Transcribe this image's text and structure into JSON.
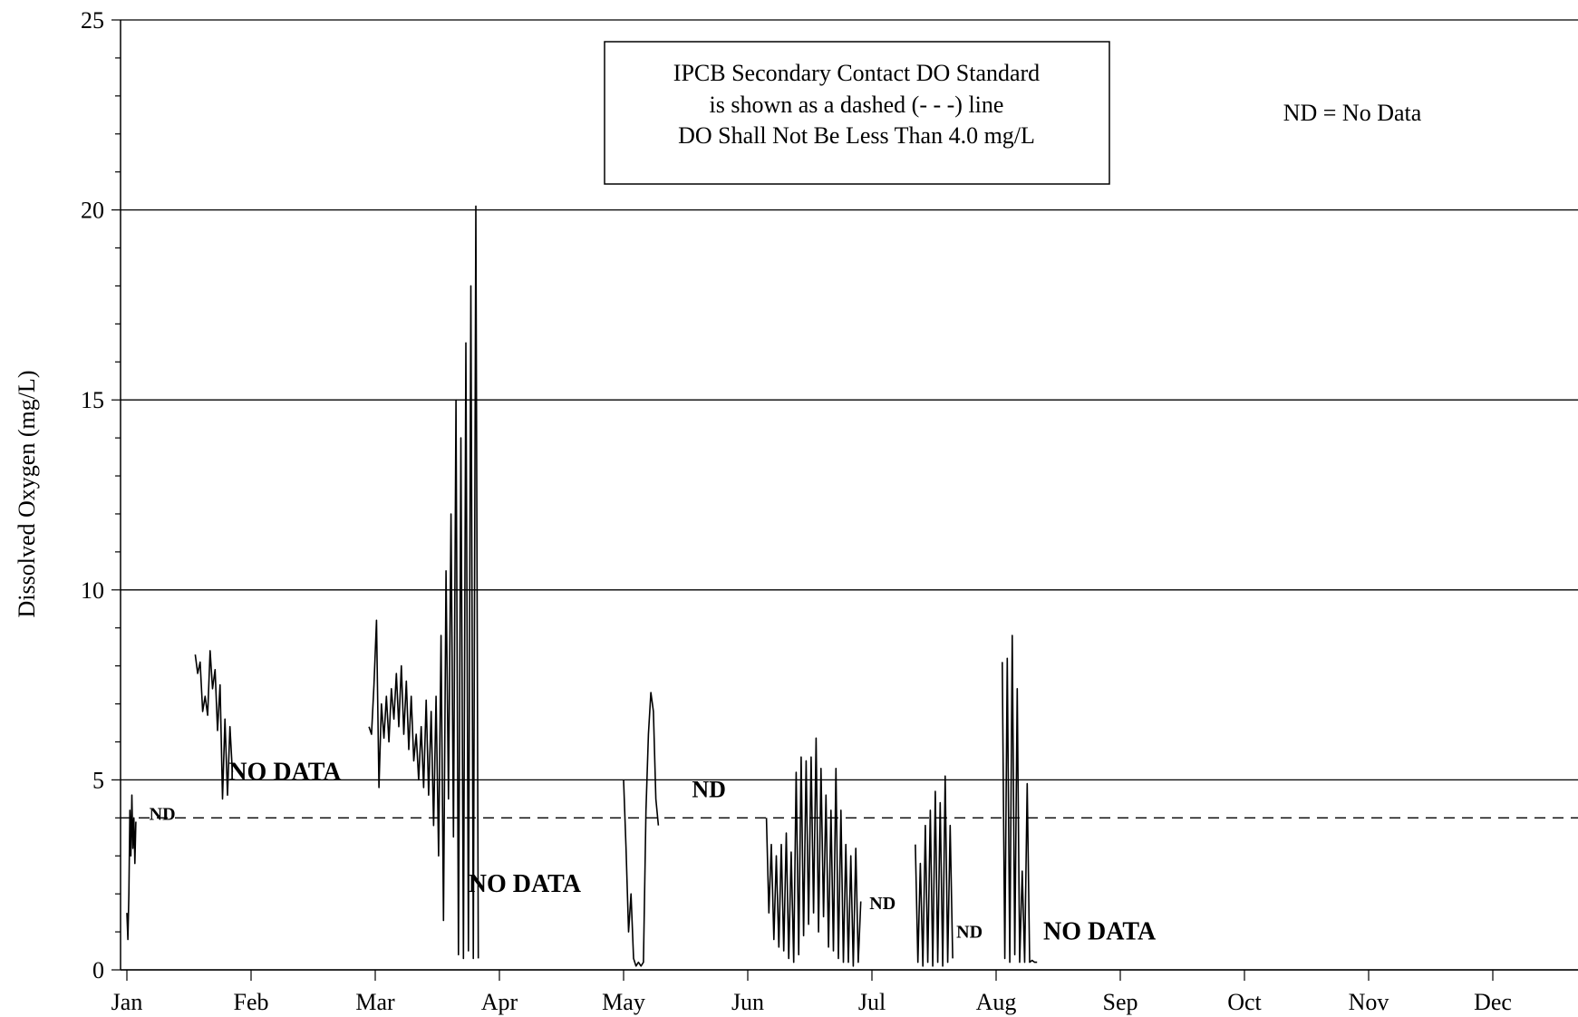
{
  "chart_data": {
    "type": "line",
    "title": "",
    "xlabel": "",
    "ylabel": "Dissolved Oxygen (mg/L)",
    "ylim": [
      0,
      25
    ],
    "xlim": [
      0,
      12.35
    ],
    "yticks": [
      0,
      5,
      10,
      15,
      20,
      25
    ],
    "xtick_labels": [
      "Jan",
      "Feb",
      "Mar",
      "Apr",
      "May",
      "Jun",
      "Jul",
      "Aug",
      "Sep",
      "Oct",
      "Nov",
      "Dec"
    ],
    "grid": "horizontal",
    "standard_line": {
      "value": 4.0,
      "style": "dashed"
    },
    "legend_box": {
      "lines": [
        "IPCB Secondary Contact DO Standard",
        "is shown as a dashed (- - -) line",
        "DO Shall Not Be Less Than 4.0 mg/L"
      ]
    },
    "nd_note": "ND = No Data",
    "annotations": [
      {
        "text": "ND",
        "x": 0.18,
        "y": 3.95,
        "size": "small"
      },
      {
        "text": "NO DATA",
        "x": 0.82,
        "y": 5.0,
        "size": "large"
      },
      {
        "text": "NO DATA",
        "x": 2.75,
        "y": 2.05,
        "size": "large"
      },
      {
        "text": "ND",
        "x": 4.55,
        "y": 4.55,
        "size": "medium"
      },
      {
        "text": "ND",
        "x": 5.98,
        "y": 1.6,
        "size": "small"
      },
      {
        "text": "ND",
        "x": 6.68,
        "y": 0.85,
        "size": "small"
      },
      {
        "text": "NO DATA",
        "x": 7.38,
        "y": 0.8,
        "size": "large"
      }
    ],
    "series": [
      {
        "segments": [
          [
            [
              0.0,
              1.5
            ],
            [
              0.008,
              0.8
            ],
            [
              0.016,
              2.0
            ],
            [
              0.024,
              4.2
            ],
            [
              0.032,
              3.0
            ],
            [
              0.04,
              4.6
            ],
            [
              0.048,
              3.2
            ],
            [
              0.056,
              4.0
            ],
            [
              0.064,
              2.8
            ],
            [
              0.072,
              3.9
            ]
          ],
          [
            [
              0.55,
              8.3
            ],
            [
              0.57,
              7.8
            ],
            [
              0.59,
              8.1
            ],
            [
              0.61,
              6.8
            ],
            [
              0.63,
              7.2
            ],
            [
              0.65,
              6.7
            ],
            [
              0.67,
              8.4
            ],
            [
              0.69,
              7.4
            ],
            [
              0.71,
              7.9
            ],
            [
              0.73,
              6.3
            ],
            [
              0.75,
              7.5
            ],
            [
              0.77,
              4.5
            ],
            [
              0.79,
              6.6
            ],
            [
              0.81,
              4.6
            ],
            [
              0.83,
              6.4
            ],
            [
              0.85,
              5.2
            ]
          ],
          [
            [
              1.95,
              6.4
            ],
            [
              1.97,
              6.2
            ],
            [
              1.99,
              7.5
            ],
            [
              2.01,
              9.2
            ],
            [
              2.03,
              4.8
            ],
            [
              2.05,
              7.0
            ],
            [
              2.07,
              6.1
            ],
            [
              2.09,
              7.2
            ],
            [
              2.11,
              6.0
            ],
            [
              2.13,
              7.4
            ],
            [
              2.15,
              6.6
            ],
            [
              2.17,
              7.8
            ],
            [
              2.19,
              6.4
            ],
            [
              2.21,
              8.0
            ],
            [
              2.23,
              6.2
            ],
            [
              2.25,
              7.6
            ],
            [
              2.27,
              5.8
            ],
            [
              2.29,
              7.2
            ],
            [
              2.31,
              5.5
            ],
            [
              2.33,
              6.2
            ],
            [
              2.35,
              5.0
            ],
            [
              2.37,
              6.4
            ],
            [
              2.39,
              4.8
            ],
            [
              2.41,
              7.1
            ],
            [
              2.43,
              4.6
            ],
            [
              2.45,
              6.8
            ],
            [
              2.47,
              3.8
            ],
            [
              2.49,
              7.2
            ],
            [
              2.51,
              3.0
            ],
            [
              2.53,
              8.8
            ],
            [
              2.55,
              1.3
            ],
            [
              2.57,
              10.5
            ],
            [
              2.59,
              4.5
            ],
            [
              2.61,
              12.0
            ],
            [
              2.63,
              3.5
            ],
            [
              2.65,
              15.0
            ],
            [
              2.67,
              0.4
            ],
            [
              2.69,
              14.0
            ],
            [
              2.71,
              0.3
            ],
            [
              2.73,
              16.5
            ],
            [
              2.75,
              0.5
            ],
            [
              2.77,
              18.0
            ],
            [
              2.79,
              0.3
            ],
            [
              2.81,
              20.1
            ],
            [
              2.83,
              0.3
            ]
          ],
          [
            [
              4.0,
              5.0
            ],
            [
              4.02,
              3.2
            ],
            [
              4.04,
              1.0
            ],
            [
              4.06,
              2.0
            ],
            [
              4.08,
              0.3
            ],
            [
              4.1,
              0.1
            ],
            [
              4.12,
              0.2
            ],
            [
              4.14,
              0.1
            ],
            [
              4.16,
              0.2
            ],
            [
              4.18,
              4.2
            ],
            [
              4.2,
              6.2
            ],
            [
              4.22,
              7.3
            ],
            [
              4.24,
              6.8
            ],
            [
              4.26,
              4.5
            ],
            [
              4.28,
              3.8
            ]
          ],
          [
            [
              5.15,
              4.0
            ],
            [
              5.17,
              1.5
            ],
            [
              5.19,
              3.3
            ],
            [
              5.21,
              0.8
            ],
            [
              5.23,
              3.0
            ],
            [
              5.25,
              0.6
            ],
            [
              5.27,
              3.3
            ],
            [
              5.29,
              0.5
            ],
            [
              5.31,
              3.6
            ],
            [
              5.33,
              0.3
            ],
            [
              5.35,
              3.1
            ],
            [
              5.37,
              0.2
            ],
            [
              5.39,
              5.2
            ],
            [
              5.41,
              0.4
            ],
            [
              5.43,
              5.6
            ],
            [
              5.45,
              0.9
            ],
            [
              5.47,
              5.5
            ],
            [
              5.49,
              1.2
            ],
            [
              5.51,
              5.6
            ],
            [
              5.53,
              1.5
            ],
            [
              5.55,
              6.1
            ],
            [
              5.57,
              1.0
            ],
            [
              5.59,
              5.3
            ],
            [
              5.61,
              1.4
            ],
            [
              5.63,
              4.6
            ],
            [
              5.65,
              0.6
            ],
            [
              5.67,
              4.2
            ],
            [
              5.69,
              0.5
            ],
            [
              5.71,
              5.3
            ],
            [
              5.73,
              0.3
            ],
            [
              5.75,
              4.2
            ],
            [
              5.77,
              0.2
            ],
            [
              5.79,
              3.3
            ],
            [
              5.81,
              0.2
            ],
            [
              5.83,
              3.0
            ],
            [
              5.85,
              0.1
            ],
            [
              5.87,
              3.2
            ],
            [
              5.89,
              0.2
            ],
            [
              5.91,
              1.8
            ]
          ],
          [
            [
              6.35,
              3.3
            ],
            [
              6.37,
              0.2
            ],
            [
              6.39,
              2.8
            ],
            [
              6.41,
              0.1
            ],
            [
              6.43,
              3.8
            ],
            [
              6.45,
              0.2
            ],
            [
              6.47,
              4.2
            ],
            [
              6.49,
              0.1
            ],
            [
              6.51,
              4.7
            ],
            [
              6.53,
              0.2
            ],
            [
              6.55,
              4.4
            ],
            [
              6.57,
              0.1
            ],
            [
              6.59,
              5.1
            ],
            [
              6.61,
              0.2
            ],
            [
              6.63,
              3.8
            ],
            [
              6.65,
              0.3
            ]
          ],
          [
            [
              7.05,
              8.1
            ],
            [
              7.07,
              0.3
            ],
            [
              7.09,
              8.2
            ],
            [
              7.11,
              0.2
            ],
            [
              7.13,
              8.8
            ],
            [
              7.15,
              0.4
            ],
            [
              7.17,
              7.4
            ],
            [
              7.19,
              0.2
            ],
            [
              7.21,
              2.6
            ],
            [
              7.23,
              0.2
            ],
            [
              7.25,
              4.9
            ],
            [
              7.27,
              0.2
            ],
            [
              7.29,
              0.25
            ],
            [
              7.31,
              0.2
            ],
            [
              7.33,
              0.2
            ]
          ]
        ]
      }
    ]
  }
}
